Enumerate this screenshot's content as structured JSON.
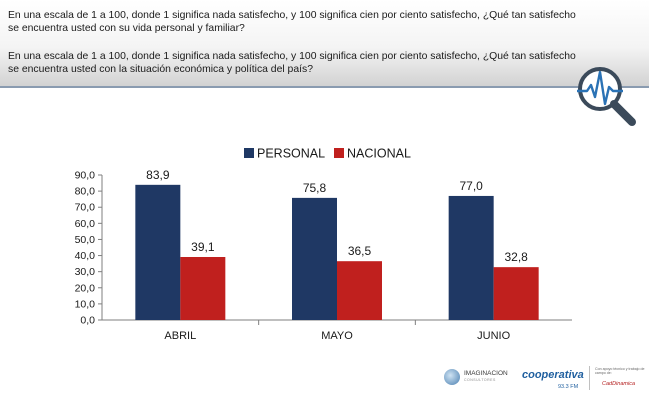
{
  "header": {
    "question_1": "En una escala de 1 a 100, donde 1 significa nada satisfecho, y 100 significa cien por ciento satisfecho, ¿Qué tan satisfecho se encuentra usted con su vida personal y familiar?",
    "question_2": "En una escala de 1 a 100, donde 1 significa nada satisfecho, y 100 significa cien por ciento satisfecho, ¿Qué tan satisfecho se encuentra usted con la situación económica y política del país?"
  },
  "chart_data": {
    "type": "bar",
    "categories": [
      "ABRIL",
      "MAYO",
      "JUNIO"
    ],
    "series": [
      {
        "name": "PERSONAL",
        "color": "#1f3864",
        "values": [
          83.9,
          75.8,
          77.0
        ],
        "labels": [
          "83,9",
          "75,8",
          "77,0"
        ]
      },
      {
        "name": "NACIONAL",
        "color": "#c0201e",
        "values": [
          39.1,
          36.5,
          32.8
        ],
        "labels": [
          "39,1",
          "36,5",
          "32,8"
        ]
      }
    ],
    "ylim": [
      0,
      90
    ],
    "yticks": [
      {
        "value": 0,
        "label": "0,0"
      },
      {
        "value": 10,
        "label": "10,0"
      },
      {
        "value": 20,
        "label": "20,0"
      },
      {
        "value": 30,
        "label": "30,0"
      },
      {
        "value": 40,
        "label": "40,0"
      },
      {
        "value": 50,
        "label": "50,0"
      },
      {
        "value": 60,
        "label": "60,0"
      },
      {
        "value": 70,
        "label": "70,0"
      },
      {
        "value": 80,
        "label": "80,0"
      },
      {
        "value": 90,
        "label": "90,0"
      }
    ],
    "title": "",
    "xlabel": "",
    "ylabel": "",
    "legend_position": "top-center"
  },
  "footer": {
    "imaginacion": "IMAGINACION",
    "imaginacion_sub": "CONSULTORES",
    "cooperativa": "cooperativa",
    "cooperativa_freq": "93.3 FM",
    "apoyo_text": "Con apoyo técnico y trabajo de campo de:",
    "cadem": "CadDinamica"
  },
  "icons": {
    "logo": "heartbeat-magnifier-icon"
  },
  "colors": {
    "accent": "#1f3864",
    "secondary": "#c0201e",
    "header_line": "#8a9bb0"
  }
}
